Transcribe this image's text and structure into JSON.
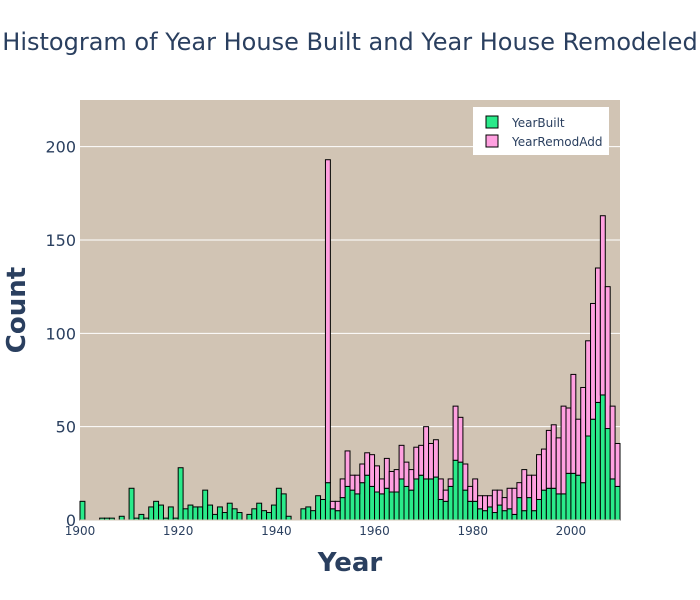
{
  "chart_data": {
    "type": "bar",
    "barmode": "stack",
    "title": "Histogram of Year House Built and Year House Remodeled",
    "xlabel": "Year",
    "ylabel": "Count",
    "xlim": [
      1900,
      2010
    ],
    "ylim": [
      0,
      225
    ],
    "x_ticks": [
      "1900",
      "1920",
      "1940",
      "1960",
      "1980",
      "2000"
    ],
    "y_ticks": [
      "0",
      "50",
      "100",
      "150",
      "200"
    ],
    "plot_bgcolor": "#d1c4b4",
    "bar_outline": "#000000",
    "legend_position": "top-right",
    "series": [
      {
        "name": "YearBuilt",
        "color": "#2aea8a",
        "x": [
          1900,
          1901,
          1902,
          1903,
          1904,
          1905,
          1906,
          1907,
          1908,
          1909,
          1910,
          1911,
          1912,
          1913,
          1914,
          1915,
          1916,
          1917,
          1918,
          1919,
          1920,
          1921,
          1922,
          1923,
          1924,
          1925,
          1926,
          1927,
          1928,
          1929,
          1930,
          1931,
          1932,
          1933,
          1934,
          1935,
          1936,
          1937,
          1938,
          1939,
          1940,
          1941,
          1942,
          1943,
          1944,
          1945,
          1946,
          1947,
          1948,
          1949,
          1950,
          1951,
          1952,
          1953,
          1954,
          1955,
          1956,
          1957,
          1958,
          1959,
          1960,
          1961,
          1962,
          1963,
          1964,
          1965,
          1966,
          1967,
          1968,
          1969,
          1970,
          1971,
          1972,
          1973,
          1974,
          1975,
          1976,
          1977,
          1978,
          1979,
          1980,
          1981,
          1982,
          1983,
          1984,
          1985,
          1986,
          1987,
          1988,
          1989,
          1990,
          1991,
          1992,
          1993,
          1994,
          1995,
          1996,
          1997,
          1998,
          1999,
          2000,
          2001,
          2002,
          2003,
          2004,
          2005,
          2006,
          2007,
          2008,
          2009,
          2010
        ],
        "values": [
          10,
          0,
          0,
          0,
          1,
          1,
          1,
          0,
          2,
          0,
          17,
          1,
          3,
          1,
          7,
          10,
          8,
          1,
          7,
          1,
          28,
          6,
          8,
          7,
          7,
          16,
          8,
          3,
          7,
          4,
          9,
          6,
          4,
          0,
          3,
          6,
          9,
          5,
          4,
          8,
          17,
          14,
          2,
          0,
          0,
          6,
          7,
          5,
          13,
          11,
          20,
          6,
          5,
          12,
          18,
          16,
          14,
          20,
          24,
          18,
          15,
          14,
          17,
          15,
          15,
          22,
          18,
          16,
          22,
          24,
          22,
          22,
          23,
          11,
          10,
          18,
          32,
          31,
          16,
          10,
          10,
          6,
          5,
          7,
          4,
          8,
          5,
          6,
          3,
          12,
          5,
          12,
          5,
          11,
          16,
          17,
          17,
          14,
          14,
          25,
          25,
          24,
          20,
          45,
          54,
          63,
          67,
          49,
          22,
          18,
          7
        ]
      },
      {
        "name": "YearRemodAdd",
        "color": "#ffa0e0",
        "x": [
          1950,
          1951,
          1952,
          1953,
          1954,
          1955,
          1956,
          1957,
          1958,
          1959,
          1960,
          1961,
          1962,
          1963,
          1964,
          1965,
          1966,
          1967,
          1968,
          1969,
          1970,
          1971,
          1972,
          1973,
          1974,
          1975,
          1976,
          1977,
          1978,
          1979,
          1980,
          1981,
          1982,
          1983,
          1984,
          1985,
          1986,
          1987,
          1988,
          1989,
          1990,
          1991,
          1992,
          1993,
          1994,
          1995,
          1996,
          1997,
          1998,
          1999,
          2000,
          2001,
          2002,
          2003,
          2004,
          2005,
          2006,
          2007,
          2008,
          2009,
          2010
        ],
        "values": [
          173,
          4,
          5,
          10,
          19,
          8,
          10,
          10,
          12,
          17,
          14,
          8,
          16,
          11,
          12,
          18,
          13,
          11,
          17,
          16,
          28,
          19,
          20,
          11,
          6,
          4,
          29,
          24,
          14,
          8,
          12,
          7,
          8,
          6,
          12,
          8,
          7,
          11,
          14,
          8,
          22,
          12,
          19,
          24,
          22,
          31,
          34,
          30,
          47,
          35,
          53,
          30,
          51,
          51,
          62,
          72,
          96,
          76,
          39,
          23,
          4
        ]
      }
    ]
  }
}
